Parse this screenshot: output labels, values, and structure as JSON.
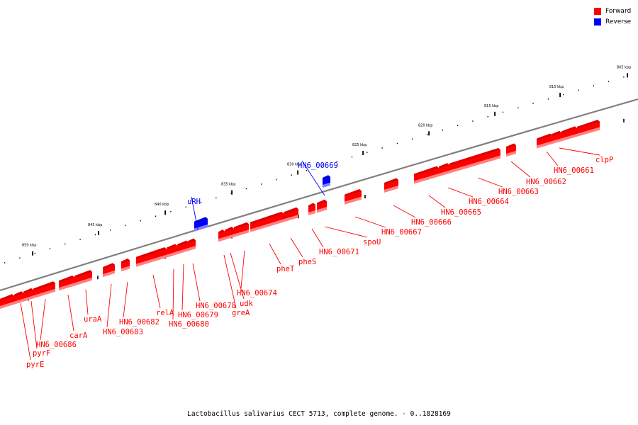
{
  "legend": [
    {
      "label": "Forward",
      "color": "#ff0000"
    },
    {
      "label": "Reverse",
      "color": "#0000ff"
    }
  ],
  "caption": "Lactobacillus salivarius CECT 5713, complete genome. - 0..1828169",
  "colors": {
    "backbone": "#808080",
    "forward": "#ff0000",
    "reverse": "#0000ff"
  },
  "scale_labels": [
    "805 kbp",
    "810 kbp",
    "815 kbp",
    "820 kbp",
    "825 kbp",
    "830 kbp",
    "835 kbp",
    "840 kbp",
    "845 kbp",
    "850 kbp"
  ],
  "genes": [
    {
      "label": "clpP",
      "strand": "forward"
    },
    {
      "label": "HN6_00661",
      "strand": "forward"
    },
    {
      "label": "HN6_00662",
      "strand": "forward"
    },
    {
      "label": "HN6_00663",
      "strand": "forward"
    },
    {
      "label": "HN6_00664",
      "strand": "forward"
    },
    {
      "label": "HN6_00665",
      "strand": "forward"
    },
    {
      "label": "HN6_00666",
      "strand": "forward"
    },
    {
      "label": "HN6_00667",
      "strand": "forward"
    },
    {
      "label": "spoU",
      "strand": "forward"
    },
    {
      "label": "HN6_00669",
      "strand": "reverse"
    },
    {
      "label": "HN6_00671",
      "strand": "forward"
    },
    {
      "label": "pheS",
      "strand": "forward"
    },
    {
      "label": "pheT",
      "strand": "forward"
    },
    {
      "label": "uRH",
      "strand": "reverse"
    },
    {
      "label": "HN6_00674",
      "strand": "forward"
    },
    {
      "label": "udk",
      "strand": "forward"
    },
    {
      "label": "greA",
      "strand": "forward"
    },
    {
      "label": "HN6_00678",
      "strand": "forward"
    },
    {
      "label": "HN6_00679",
      "strand": "forward"
    },
    {
      "label": "HN6_00680",
      "strand": "forward"
    },
    {
      "label": "relA",
      "strand": "forward"
    },
    {
      "label": "HN6_00682",
      "strand": "forward"
    },
    {
      "label": "HN6_00683",
      "strand": "forward"
    },
    {
      "label": "uraA",
      "strand": "forward"
    },
    {
      "label": "carA",
      "strand": "forward"
    },
    {
      "label": "HN6_00686",
      "strand": "forward"
    },
    {
      "label": "pyrF",
      "strand": "forward"
    },
    {
      "label": "pyrE",
      "strand": "forward"
    }
  ]
}
